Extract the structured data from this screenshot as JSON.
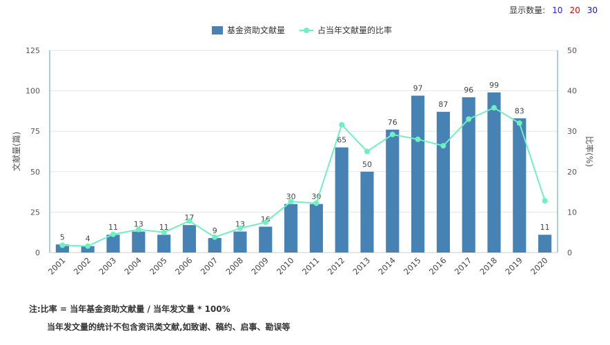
{
  "display_control": {
    "label": "显示数量:",
    "options": [
      {
        "label": "10",
        "color": "#1a1aff"
      },
      {
        "label": "20",
        "color": "#e60000"
      },
      {
        "label": "30",
        "color": "#1a1a9a"
      }
    ]
  },
  "notes": {
    "line1": "注:比率 = 当年基金资助文献量 / 当年发文量 * 100%",
    "line2": "当年发文量的统计不包含资讯类文献,如致谢、稿约、启事、勘误等"
  },
  "chart_data": {
    "type": "bar",
    "categories": [
      "2001",
      "2002",
      "2003",
      "2004",
      "2005",
      "2006",
      "2007",
      "2008",
      "2009",
      "2010",
      "2011",
      "2012",
      "2013",
      "2014",
      "2015",
      "2016",
      "2017",
      "2018",
      "2019",
      "2020"
    ],
    "series": [
      {
        "name": "基金资助文献量",
        "type": "bar",
        "axis": "left",
        "color": "#4682b4",
        "values": [
          5,
          4,
          11,
          13,
          11,
          17,
          9,
          13,
          16,
          30,
          30,
          65,
          50,
          76,
          97,
          87,
          96,
          99,
          83,
          11
        ]
      },
      {
        "name": "占当年文献量的比率",
        "type": "line",
        "axis": "right",
        "color": "#6ff0c0",
        "values": [
          1.8,
          1.6,
          4.5,
          5.7,
          5.0,
          7.8,
          3.8,
          6.0,
          7.5,
          12.6,
          12.2,
          31.6,
          25.0,
          29.2,
          28.0,
          26.4,
          33.0,
          35.8,
          32.0,
          12.8
        ]
      }
    ],
    "ylabel": "文献量(篇)",
    "y2label": "比率(%)",
    "ylim": [
      0,
      125
    ],
    "yticks": [
      0,
      25,
      50,
      75,
      100,
      125
    ],
    "y2lim": [
      0,
      50
    ],
    "y2ticks": [
      0,
      10,
      20,
      30,
      40,
      50
    ],
    "grid": true,
    "legend_position": "top-center"
  }
}
